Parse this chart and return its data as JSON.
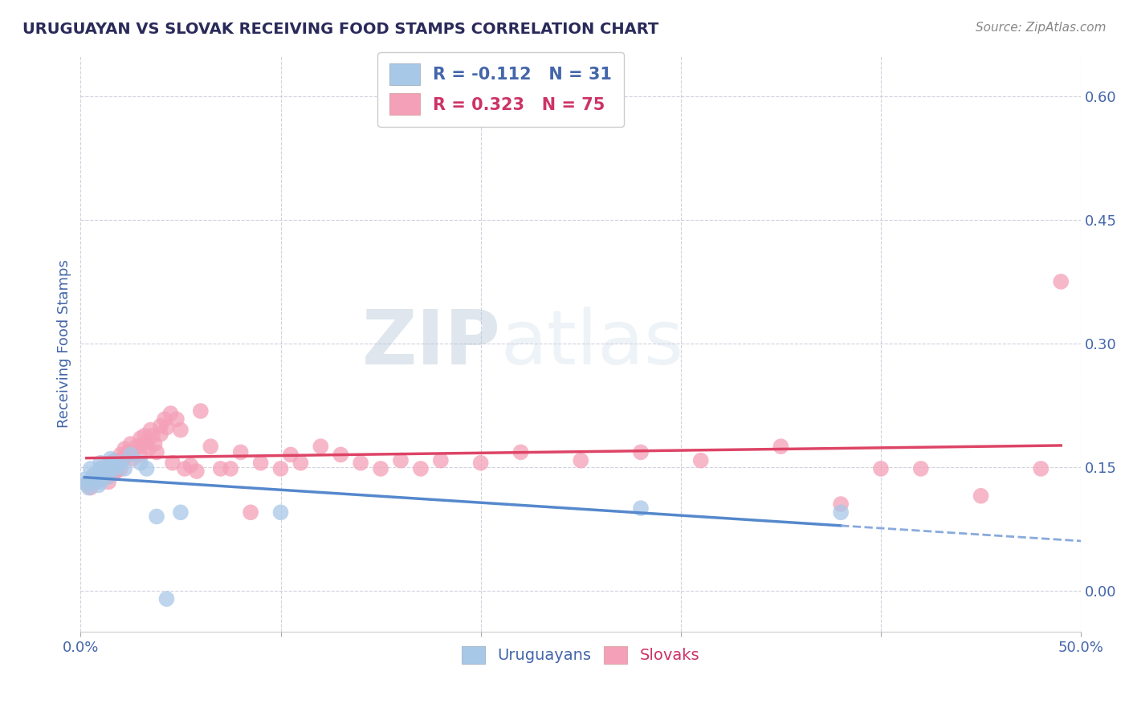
{
  "title": "URUGUAYAN VS SLOVAK RECEIVING FOOD STAMPS CORRELATION CHART",
  "source": "Source: ZipAtlas.com",
  "ylabel": "Receiving Food Stamps",
  "xlim": [
    0.0,
    0.5
  ],
  "ylim": [
    -0.05,
    0.65
  ],
  "yticks": [
    0.0,
    0.15,
    0.3,
    0.45,
    0.6
  ],
  "ytick_labels": [
    "0.0%",
    "15.0%",
    "30.0%",
    "45.0%",
    "60.0%"
  ],
  "xticks": [
    0.0,
    0.1,
    0.2,
    0.3,
    0.4,
    0.5
  ],
  "xtick_labels": [
    "0.0%",
    "",
    "",
    "",
    "",
    "50.0%"
  ],
  "watermark_zip": "ZIP",
  "watermark_atlas": "atlas",
  "legend_blue_r": "R = -0.112",
  "legend_blue_n": "N = 31",
  "legend_pink_r": "R = 0.323",
  "legend_pink_n": "N = 75",
  "legend_blue_label": "Uruguayans",
  "legend_pink_label": "Slovaks",
  "blue_color": "#a8c8e8",
  "pink_color": "#f4a0b8",
  "line_blue_solid": "#5588cc",
  "line_blue_dashed": "#88aadd",
  "line_pink": "#dd4466",
  "title_color": "#2a2a5a",
  "tick_color": "#4466aa",
  "grid_color": "#ccccdd",
  "background_color": "#ffffff",
  "uruguayan_x": [
    0.002,
    0.003,
    0.004,
    0.005,
    0.006,
    0.007,
    0.008,
    0.009,
    0.01,
    0.01,
    0.01,
    0.01,
    0.01,
    0.012,
    0.013,
    0.014,
    0.015,
    0.016,
    0.017,
    0.018,
    0.02,
    0.022,
    0.025,
    0.03,
    0.033,
    0.038,
    0.043,
    0.05,
    0.1,
    0.28,
    0.38
  ],
  "uruguayan_y": [
    0.135,
    0.13,
    0.125,
    0.148,
    0.138,
    0.142,
    0.136,
    0.128,
    0.155,
    0.148,
    0.143,
    0.14,
    0.132,
    0.15,
    0.145,
    0.138,
    0.16,
    0.155,
    0.148,
    0.152,
    0.155,
    0.148,
    0.165,
    0.155,
    0.148,
    0.09,
    -0.01,
    0.095,
    0.095,
    0.1,
    0.095
  ],
  "slovak_x": [
    0.003,
    0.005,
    0.007,
    0.008,
    0.01,
    0.01,
    0.012,
    0.013,
    0.014,
    0.015,
    0.015,
    0.016,
    0.017,
    0.018,
    0.018,
    0.02,
    0.02,
    0.02,
    0.022,
    0.022,
    0.024,
    0.025,
    0.025,
    0.026,
    0.028,
    0.03,
    0.03,
    0.03,
    0.032,
    0.033,
    0.034,
    0.035,
    0.036,
    0.037,
    0.038,
    0.04,
    0.04,
    0.042,
    0.043,
    0.045,
    0.046,
    0.048,
    0.05,
    0.052,
    0.055,
    0.058,
    0.06,
    0.065,
    0.07,
    0.075,
    0.08,
    0.085,
    0.09,
    0.1,
    0.105,
    0.11,
    0.12,
    0.13,
    0.14,
    0.15,
    0.16,
    0.17,
    0.18,
    0.2,
    0.22,
    0.25,
    0.28,
    0.31,
    0.35,
    0.38,
    0.4,
    0.42,
    0.45,
    0.48,
    0.49
  ],
  "slovak_y": [
    0.13,
    0.125,
    0.138,
    0.132,
    0.148,
    0.14,
    0.145,
    0.138,
    0.132,
    0.155,
    0.148,
    0.142,
    0.158,
    0.152,
    0.145,
    0.165,
    0.158,
    0.148,
    0.172,
    0.162,
    0.168,
    0.178,
    0.168,
    0.16,
    0.175,
    0.185,
    0.175,
    0.165,
    0.188,
    0.18,
    0.172,
    0.195,
    0.188,
    0.178,
    0.168,
    0.2,
    0.19,
    0.208,
    0.198,
    0.215,
    0.155,
    0.208,
    0.195,
    0.148,
    0.152,
    0.145,
    0.218,
    0.175,
    0.148,
    0.148,
    0.168,
    0.095,
    0.155,
    0.148,
    0.165,
    0.155,
    0.175,
    0.165,
    0.155,
    0.148,
    0.158,
    0.148,
    0.158,
    0.155,
    0.168,
    0.158,
    0.168,
    0.158,
    0.175,
    0.105,
    0.148,
    0.148,
    0.115,
    0.148,
    0.375
  ]
}
